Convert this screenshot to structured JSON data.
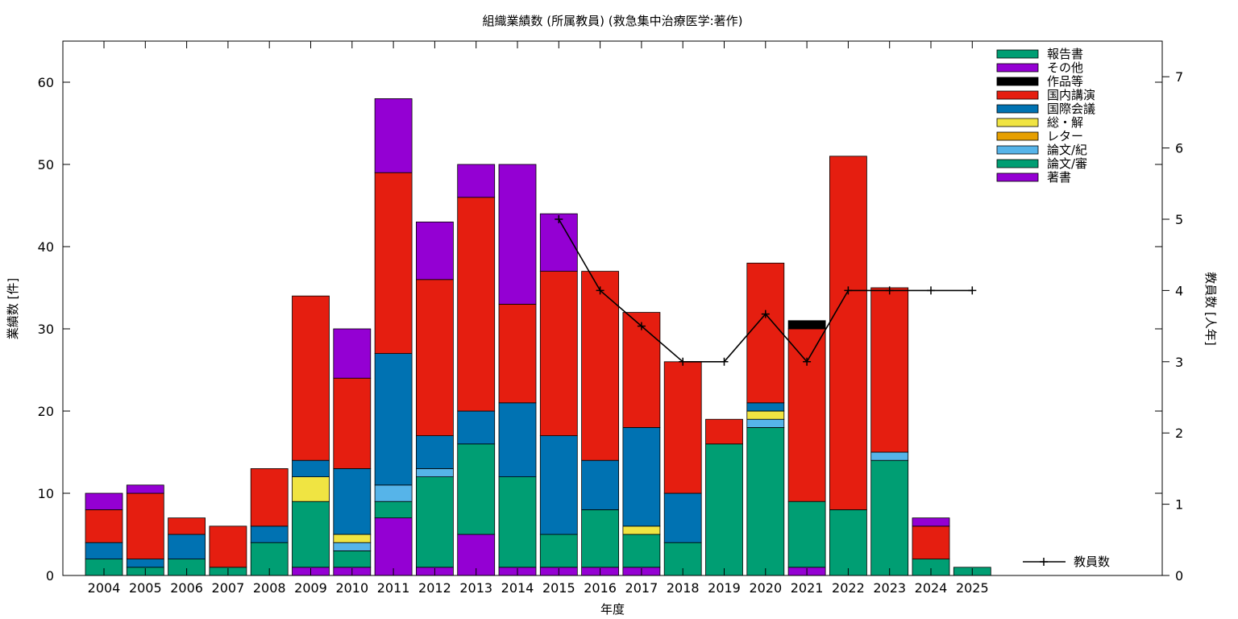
{
  "chart_data": {
    "type": "bar",
    "stacked": true,
    "title": "組織業績数 (所属教員) (救急集中治療医学:著作)",
    "xlabel": "年度",
    "ylabel": "業績数 [件]",
    "y2label": "教員数 [人年]",
    "ylim": [
      0,
      65
    ],
    "y2lim": [
      0,
      7.5
    ],
    "yticks": [
      0,
      10,
      20,
      30,
      40,
      50,
      60
    ],
    "y2ticks": [
      0,
      1,
      2,
      3,
      4,
      5,
      6,
      7
    ],
    "grid": false,
    "legend_position": "top-right",
    "categories": [
      "2004",
      "2005",
      "2006",
      "2007",
      "2008",
      "2009",
      "2010",
      "2011",
      "2012",
      "2013",
      "2014",
      "2015",
      "2016",
      "2017",
      "2018",
      "2019",
      "2020",
      "2021",
      "2022",
      "2023",
      "2024",
      "2025"
    ],
    "series": [
      {
        "name": "著書",
        "color": "#9400d3",
        "values": [
          0,
          0,
          0,
          0,
          0,
          1,
          1,
          7,
          1,
          5,
          1,
          1,
          1,
          1,
          0,
          0,
          0,
          1,
          0,
          0,
          0,
          0
        ]
      },
      {
        "name": "論文/審",
        "color": "#009e73",
        "values": [
          2,
          1,
          2,
          1,
          4,
          8,
          2,
          2,
          11,
          11,
          11,
          4,
          7,
          4,
          4,
          16,
          18,
          8,
          8,
          14,
          2,
          1
        ]
      },
      {
        "name": "論文/紀",
        "color": "#56b4e9",
        "values": [
          0,
          0,
          0,
          0,
          0,
          0,
          1,
          2,
          1,
          0,
          0,
          0,
          0,
          0,
          0,
          0,
          1,
          0,
          0,
          1,
          0,
          0
        ]
      },
      {
        "name": "レター",
        "color": "#e69f00",
        "values": [
          0,
          0,
          0,
          0,
          0,
          0,
          0,
          0,
          0,
          0,
          0,
          0,
          0,
          0,
          0,
          0,
          0,
          0,
          0,
          0,
          0,
          0
        ]
      },
      {
        "name": "総・解",
        "color": "#f0e442",
        "values": [
          0,
          0,
          0,
          0,
          0,
          3,
          1,
          0,
          0,
          0,
          0,
          0,
          0,
          1,
          0,
          0,
          1,
          0,
          0,
          0,
          0,
          0
        ]
      },
      {
        "name": "国際会議",
        "color": "#0072b2",
        "values": [
          2,
          1,
          3,
          0,
          2,
          2,
          8,
          16,
          4,
          4,
          9,
          12,
          6,
          12,
          6,
          0,
          1,
          0,
          0,
          0,
          0,
          0
        ]
      },
      {
        "name": "国内講演",
        "color": "#e51e10",
        "values": [
          4,
          8,
          2,
          5,
          7,
          20,
          11,
          22,
          19,
          26,
          12,
          20,
          23,
          14,
          16,
          3,
          17,
          21,
          43,
          20,
          4,
          0
        ]
      },
      {
        "name": "作品等",
        "color": "#000000",
        "values": [
          0,
          0,
          0,
          0,
          0,
          0,
          0,
          0,
          0,
          0,
          0,
          0,
          0,
          0,
          0,
          0,
          0,
          1,
          0,
          0,
          0,
          0
        ]
      },
      {
        "name": "その他",
        "color": "#9400d3",
        "values": [
          2,
          1,
          0,
          0,
          0,
          0,
          6,
          9,
          7,
          4,
          17,
          7,
          0,
          0,
          0,
          0,
          0,
          0,
          0,
          0,
          1,
          0
        ]
      },
      {
        "name": "報告書",
        "color": "#009e73",
        "values": [
          0,
          0,
          0,
          0,
          0,
          0,
          0,
          0,
          0,
          0,
          0,
          0,
          0,
          0,
          0,
          0,
          0,
          0,
          0,
          0,
          0,
          0
        ]
      }
    ],
    "legend_order": [
      "報告書",
      "その他",
      "作品等",
      "国内講演",
      "国際会議",
      "総・解",
      "レター",
      "論文/紀",
      "論文/審",
      "著書"
    ],
    "line_series": {
      "name": "教員数",
      "axis": "y2",
      "color": "#000000",
      "points": [
        {
          "x": "2015",
          "y": 5
        },
        {
          "x": "2016",
          "y": 4
        },
        {
          "x": "2017",
          "y": 3.5
        },
        {
          "x": "2018",
          "y": 3
        },
        {
          "x": "2019",
          "y": 3
        },
        {
          "x": "2020",
          "y": 3.67
        },
        {
          "x": "2021",
          "y": 3
        },
        {
          "x": "2022",
          "y": 4
        },
        {
          "x": "2023",
          "y": 4
        },
        {
          "x": "2024",
          "y": 4
        },
        {
          "x": "2025",
          "y": 4
        }
      ]
    }
  }
}
